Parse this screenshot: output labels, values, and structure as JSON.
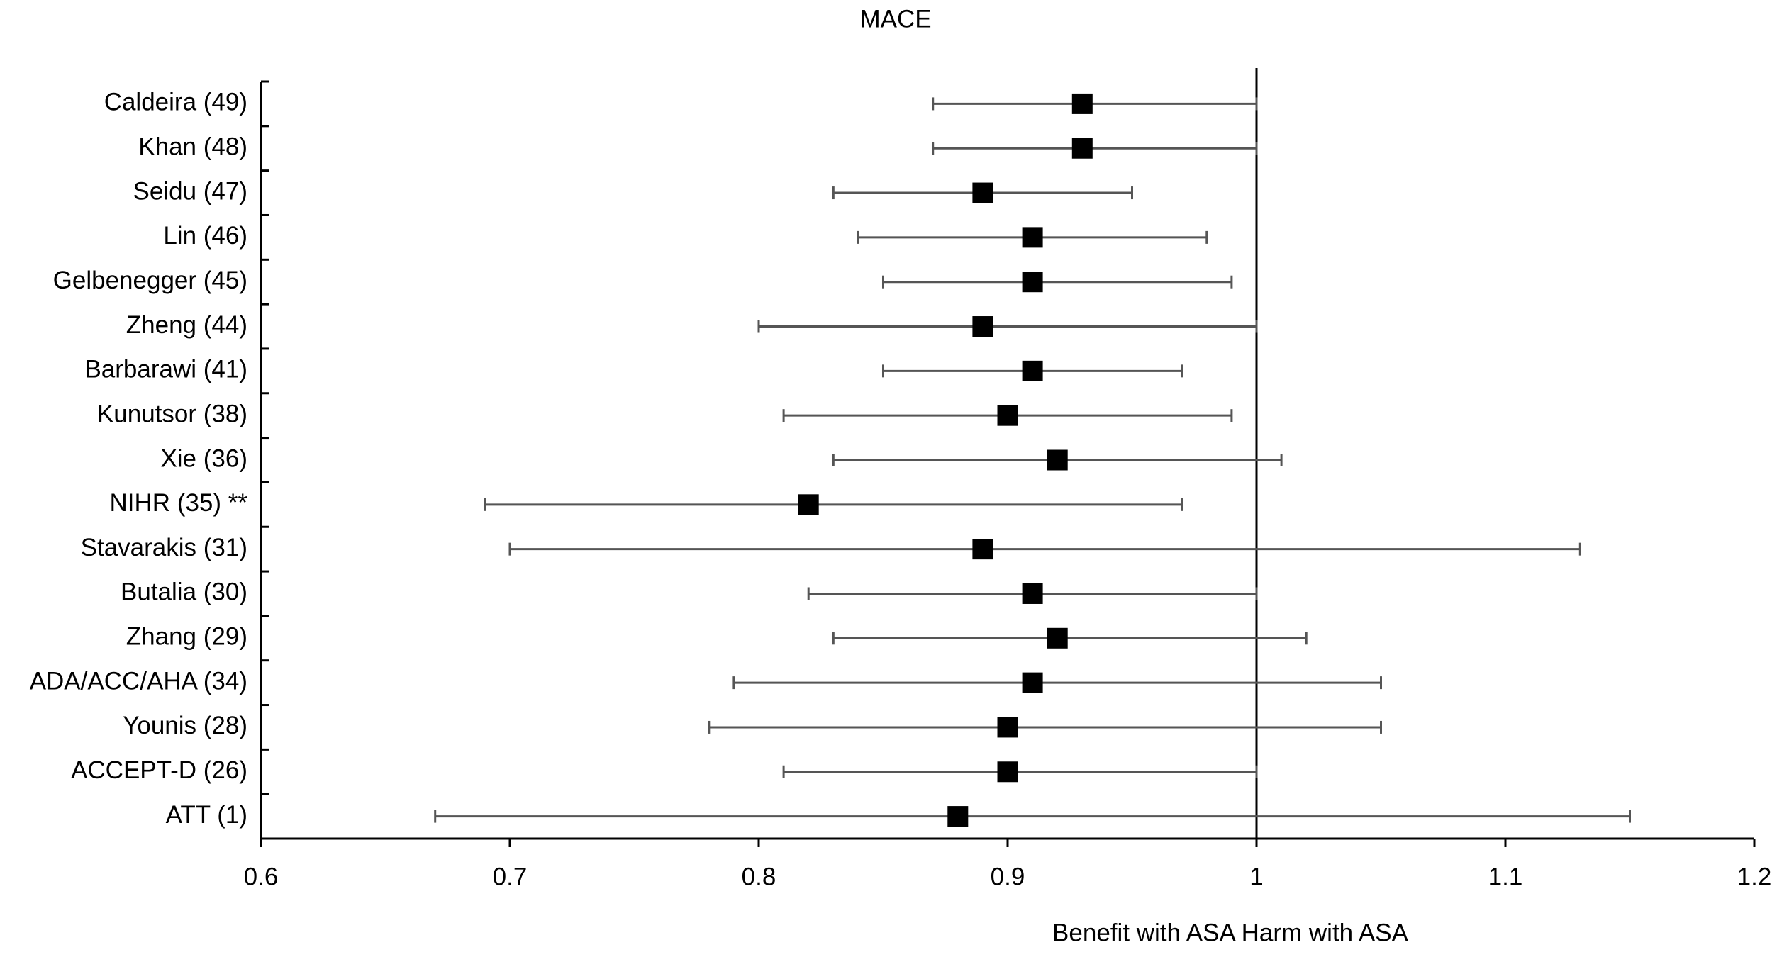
{
  "chart_data": {
    "type": "forest",
    "title": "MACE",
    "categories": [
      "Caldeira (49)",
      "Khan (48)",
      "Seidu (47)",
      "Lin (46)",
      "Gelbenegger (45)",
      "Zheng (44)",
      "Barbarawi (41)",
      "Kunutsor (38)",
      "Xie (36)",
      "NIHR (35) **",
      "Stavarakis (31)",
      "Butalia (30)",
      "Zhang (29)",
      "ADA/ACC/AHA (34)",
      "Younis (28)",
      "ACCEPT-D (26)",
      "ATT (1)"
    ],
    "values": [
      0.93,
      0.93,
      0.89,
      0.91,
      0.91,
      0.89,
      0.91,
      0.9,
      0.92,
      0.82,
      0.89,
      0.91,
      0.92,
      0.91,
      0.9,
      0.9,
      0.88
    ],
    "lower": [
      0.87,
      0.87,
      0.83,
      0.84,
      0.85,
      0.8,
      0.85,
      0.81,
      0.83,
      0.69,
      0.7,
      0.82,
      0.83,
      0.79,
      0.78,
      0.81,
      0.67
    ],
    "upper": [
      1.0,
      1.0,
      0.95,
      0.98,
      0.99,
      1.0,
      0.97,
      0.99,
      1.01,
      0.97,
      1.13,
      1.0,
      1.02,
      1.05,
      1.05,
      1.0,
      1.15
    ],
    "color": "#000000",
    "xlabel": "Benefit with ASA Harm with ASA",
    "xlim": [
      0.6,
      1.2
    ],
    "xticks": [
      0.6,
      0.7,
      0.8,
      0.9,
      1,
      1.1,
      1.2
    ],
    "ref_line": 1
  }
}
